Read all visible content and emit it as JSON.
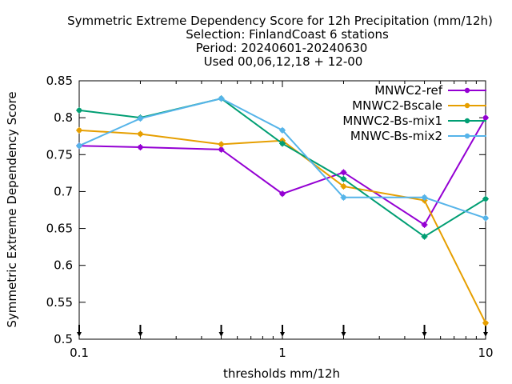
{
  "chart_data": {
    "type": "line",
    "title_lines": [
      "Symmetric Extreme Dependency Score  for 12h Precipitation (mm/12h)",
      "Selection: FinlandCoast      6 stations",
      "Period: 20240601-20240630",
      "Used 00,06,12,18 + 12-00"
    ],
    "xlabel": "thresholds mm/12h",
    "ylabel": "Symmetric Extreme Dependency Score",
    "x_scale": "log",
    "xlim": [
      0.1,
      10
    ],
    "ylim": [
      0.5,
      0.85
    ],
    "x_ticks": [
      {
        "value": 0.1,
        "label": "0.1"
      },
      {
        "value": 1,
        "label": "1"
      },
      {
        "value": 10,
        "label": "10"
      }
    ],
    "y_ticks": [
      {
        "value": 0.5,
        "label": "0.5"
      },
      {
        "value": 0.55,
        "label": "0.55"
      },
      {
        "value": 0.6,
        "label": "0.6"
      },
      {
        "value": 0.65,
        "label": "0.65"
      },
      {
        "value": 0.7,
        "label": "0.7"
      },
      {
        "value": 0.75,
        "label": "0.75"
      },
      {
        "value": 0.8,
        "label": "0.8"
      },
      {
        "value": 0.85,
        "label": "0.85"
      }
    ],
    "threshold_markers": [
      0.1,
      0.2,
      0.5,
      1,
      2,
      5,
      10
    ],
    "legend_position": "top-right",
    "grid": false,
    "x": [
      0.1,
      0.2,
      0.5,
      1,
      2,
      5,
      10
    ],
    "series": [
      {
        "name": "MNWC2-ref",
        "color": "#9400d3",
        "values": [
          0.762,
          0.76,
          0.757,
          0.697,
          0.726,
          0.655,
          0.8
        ]
      },
      {
        "name": "MNWC2-Bscale",
        "color": "#e69f00",
        "values": [
          0.783,
          0.778,
          0.764,
          0.769,
          0.707,
          0.688,
          0.522
        ]
      },
      {
        "name": "MNWC2-Bs-mix1",
        "color": "#009e73",
        "values": [
          0.81,
          0.8,
          0.826,
          0.765,
          0.717,
          0.639,
          0.69
        ]
      },
      {
        "name": "MNWC-Bs-mix2",
        "color": "#56b4e9",
        "values": [
          0.762,
          0.799,
          0.826,
          0.783,
          0.692,
          0.692,
          0.664
        ]
      }
    ]
  }
}
